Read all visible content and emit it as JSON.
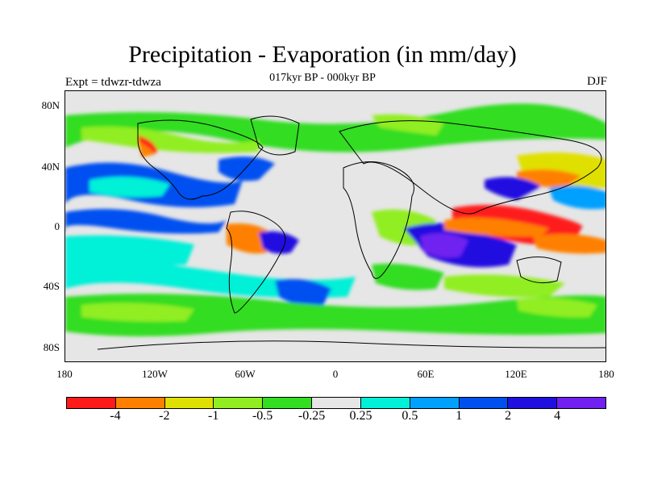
{
  "title": "Precipitation - Evaporation (in mm/day)",
  "subtitle": "017kyr BP - 000kyr BP",
  "left_note": "Expt = tdwzr-tdwza",
  "right_note": "DJF",
  "y_ticks": [
    "80N",
    "40N",
    "0",
    "40S",
    "80S"
  ],
  "x_ticks": [
    "180",
    "120W",
    "60W",
    "0",
    "60E",
    "120E",
    "180"
  ],
  "colorbar": {
    "colors": [
      "#ff1a1a",
      "#ff8000",
      "#e0e000",
      "#90ee20",
      "#33dd22",
      "#e6e6e6",
      "#00f0d8",
      "#00a0ff",
      "#0050f0",
      "#2010e0",
      "#7020f0"
    ],
    "labels": [
      "-4",
      "-2",
      "-1",
      "-0.5",
      "-0.25",
      "0.25",
      "0.5",
      "1",
      "2",
      "4"
    ]
  },
  "map_background": "#e6e6e6"
}
